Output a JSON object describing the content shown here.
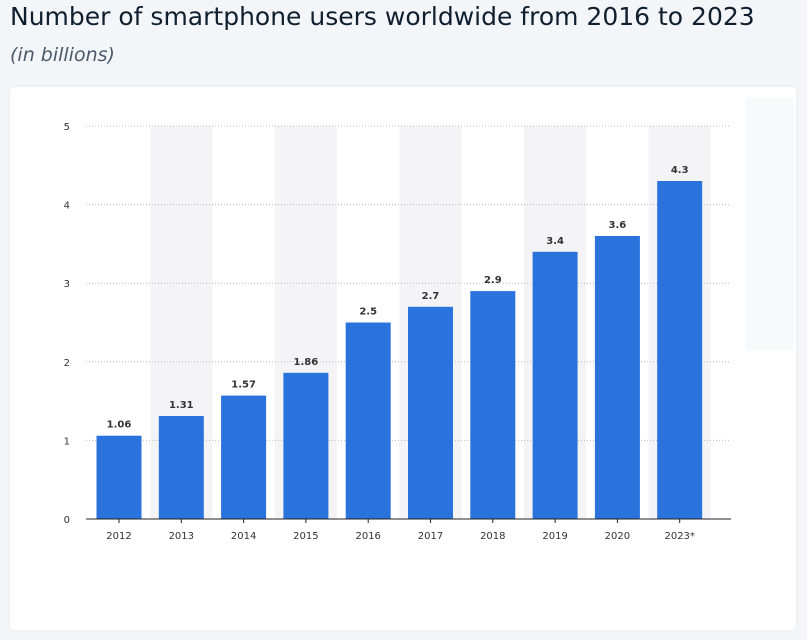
{
  "header": {
    "title": "Number of smartphone users worldwide from 2016 to 2023",
    "subtitle": "(in billions)"
  },
  "colors": {
    "bar": "#2a73dc",
    "band": "#f4f4f6",
    "grid": "#b9b9b9",
    "axis": "#222222",
    "background": "#f3f5f8",
    "card": "#ffffff"
  },
  "chart_data": {
    "type": "bar",
    "title": "Number of smartphone users worldwide from 2016 to 2023",
    "subtitle": "(in billions)",
    "xlabel": "",
    "ylabel": "",
    "categories": [
      "2012",
      "2013",
      "2014",
      "2015",
      "2016",
      "2017",
      "2018",
      "2019",
      "2020",
      "2023*"
    ],
    "values": [
      1.06,
      1.31,
      1.57,
      1.86,
      2.5,
      2.7,
      2.9,
      3.4,
      3.6,
      4.3
    ],
    "value_labels": [
      "1.06",
      "1.31",
      "1.57",
      "1.86",
      "2.5",
      "2.7",
      "2.9",
      "3.4",
      "3.6",
      "4.3"
    ],
    "ylim": [
      0,
      5
    ],
    "yticks": [
      "0",
      "1",
      "2",
      "3",
      "4",
      "5"
    ],
    "grid": true,
    "alternating_bands": true
  }
}
